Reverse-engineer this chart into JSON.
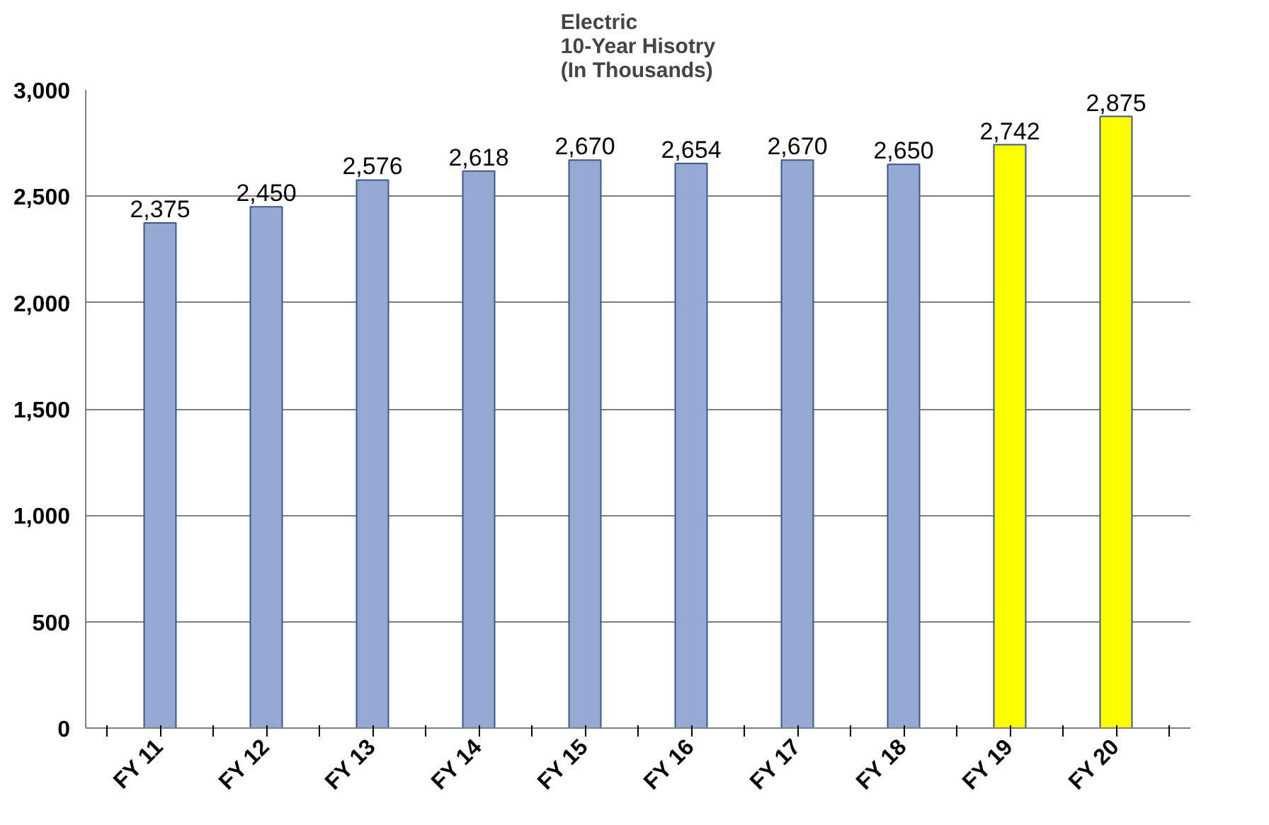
{
  "chart_data": {
    "type": "bar",
    "title": "Electric\n10-Year Hisotry\n(In Thousands)",
    "categories": [
      "FY 11",
      "FY 12",
      "FY 13",
      "FY 14",
      "FY 15",
      "FY 16",
      "FY 17",
      "FY 18",
      "FY 19",
      "FY 20"
    ],
    "values": [
      2375,
      2450,
      2576,
      2618,
      2670,
      2654,
      2670,
      2650,
      2742,
      2875
    ],
    "colors": [
      "#95a9d3",
      "#95a9d3",
      "#95a9d3",
      "#95a9d3",
      "#95a9d3",
      "#95a9d3",
      "#95a9d3",
      "#95a9d3",
      "#ffff00",
      "#ffff00"
    ],
    "ylim": [
      0,
      3000
    ],
    "yticks": [
      0,
      500,
      {
        "value": 1000,
        "label": "1,000"
      },
      {
        "value": 1500,
        "label": "1,500"
      },
      {
        "value": 2000,
        "label": "2,000"
      },
      {
        "value": 2500,
        "label": "2,500"
      },
      {
        "value": 3000,
        "label": "3,000"
      }
    ],
    "value_labels": [
      "2,375",
      "2,450",
      "2,576",
      "2,618",
      "2,670",
      "2,654",
      "2,670",
      "2,650",
      "2,742",
      "2,875"
    ],
    "grid": "y"
  }
}
